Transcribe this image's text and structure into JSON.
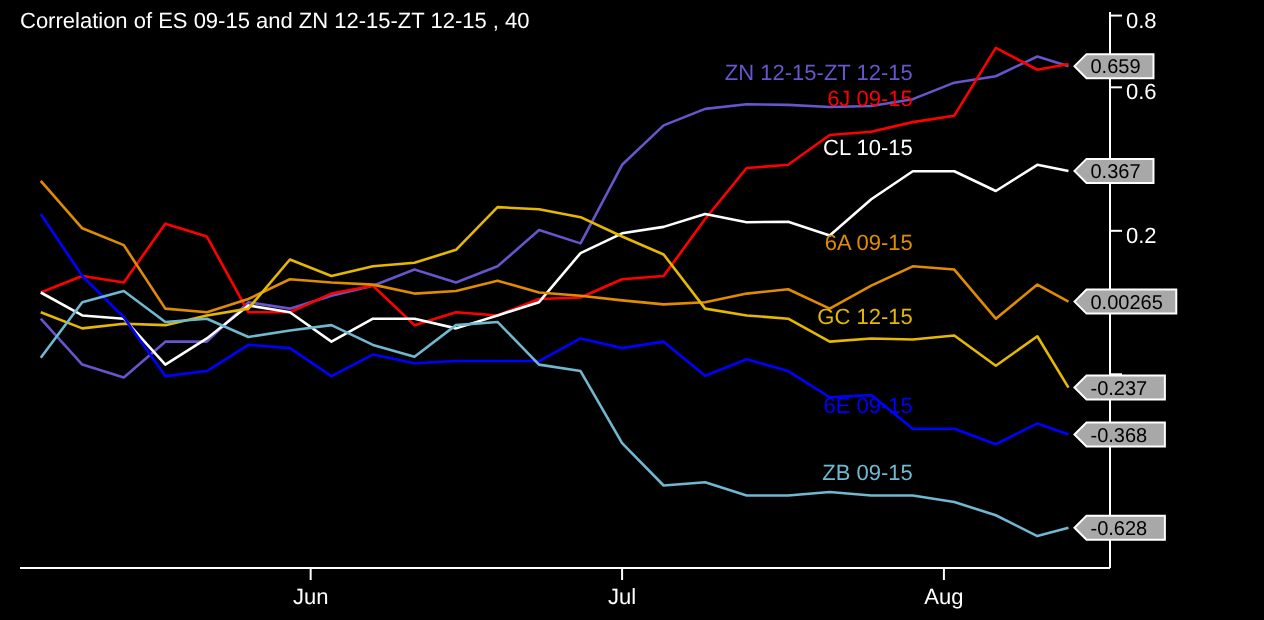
{
  "chart_data": {
    "type": "line",
    "title": "Correlation of ES 09-15 and ZN 12-15-ZT 12-15 , 40",
    "x": [
      "--05-06",
      "--05-10",
      "--05-14",
      "--05-18",
      "--05-22",
      "--05-26",
      "--05-30",
      "--06-03",
      "--06-07",
      "--06-11",
      "--06-15",
      "--06-19",
      "--06-23",
      "--06-27",
      "--07-01",
      "--07-05",
      "--07-09",
      "--07-13",
      "--07-17",
      "--07-21",
      "--07-25",
      "--07-29",
      "--08-02",
      "--08-06",
      "--08-10",
      "--08-13"
    ],
    "xlim": [
      "--05-04",
      "--08-17"
    ],
    "xticks": [
      {
        "value": "--06-01",
        "label": "Jun"
      },
      {
        "value": "--07-01",
        "label": "Jul"
      },
      {
        "value": "--08-01",
        "label": "Aug"
      }
    ],
    "ylim": [
      -0.74,
      0.81
    ],
    "yticks": [
      0.8,
      0.6,
      {
        "value": 0.4,
        "label": null
      },
      0.2,
      {
        "value": 0,
        "label": null
      },
      {
        "value": -0.2,
        "label": null
      },
      {
        "value": -0.4,
        "label": null
      },
      {
        "value": -0.6,
        "label": null
      }
    ],
    "grid": false,
    "legend": false,
    "marker": "none",
    "line_style": "solid",
    "series": [
      {
        "name": "ZN 12-15-ZT 12-15",
        "color": "#6655cc",
        "values": [
          -0.045,
          -0.173,
          -0.209,
          -0.109,
          -0.109,
          0.001,
          -0.017,
          0.019,
          0.047,
          0.092,
          0.056,
          0.101,
          0.202,
          0.165,
          0.384,
          0.494,
          0.54,
          0.553,
          0.551,
          0.545,
          0.548,
          0.567,
          0.613,
          0.631,
          0.686,
          0.659
        ],
        "value_labels": [
          null,
          null,
          null,
          null,
          null,
          null,
          null,
          null,
          null,
          null,
          null,
          null,
          null,
          null,
          null,
          null,
          null,
          null,
          null,
          null,
          null,
          null,
          null,
          null,
          null,
          "0.659"
        ]
      },
      {
        "name": "6J 09-15",
        "color": "#ff0000",
        "values": [
          0.028,
          0.074,
          0.056,
          0.22,
          0.184,
          -0.027,
          -0.027,
          0.025,
          0.047,
          -0.063,
          -0.027,
          -0.036,
          0.01,
          0.014,
          0.065,
          0.074,
          0.233,
          0.375,
          0.384,
          0.467,
          0.476,
          0.503,
          0.521,
          0.71,
          0.649,
          0.665
        ]
      },
      {
        "name": "CL 10-15",
        "color": "#ffffff",
        "values": [
          0.028,
          -0.036,
          -0.045,
          -0.173,
          -0.1,
          -0.008,
          -0.027,
          -0.109,
          -0.045,
          -0.045,
          -0.072,
          -0.036,
          0.001,
          0.138,
          0.193,
          0.211,
          0.247,
          0.224,
          0.225,
          0.187,
          0.288,
          0.366,
          0.366,
          0.311,
          0.384,
          0.367
        ],
        "value_labels": [
          null,
          null,
          null,
          null,
          null,
          null,
          null,
          null,
          null,
          null,
          null,
          null,
          null,
          null,
          null,
          null,
          null,
          null,
          null,
          null,
          null,
          null,
          null,
          null,
          null,
          "0.367"
        ]
      },
      {
        "name": "6A 09-15",
        "color": "#e08c00",
        "values": [
          0.339,
          0.207,
          0.16,
          -0.017,
          -0.027,
          0.01,
          0.065,
          0.056,
          0.05,
          0.025,
          0.032,
          0.061,
          0.028,
          0.019,
          0.006,
          -0.005,
          0.001,
          0.025,
          0.037,
          -0.017,
          0.047,
          0.101,
          0.092,
          -0.045,
          0.05,
          0.00265
        ],
        "value_labels": [
          null,
          null,
          null,
          null,
          null,
          null,
          null,
          null,
          null,
          null,
          null,
          null,
          null,
          null,
          null,
          null,
          null,
          null,
          null,
          null,
          null,
          null,
          null,
          null,
          null,
          "0.00265"
        ]
      },
      {
        "name": "GC 12-15",
        "color": "#e6b800",
        "values": [
          -0.027,
          -0.072,
          -0.059,
          -0.063,
          -0.036,
          -0.017,
          0.12,
          0.074,
          0.101,
          0.111,
          0.147,
          0.266,
          0.26,
          0.238,
          0.184,
          0.134,
          -0.017,
          -0.036,
          -0.045,
          -0.109,
          -0.1,
          -0.103,
          -0.092,
          -0.176,
          -0.094,
          -0.237
        ],
        "value_labels": [
          null,
          null,
          null,
          null,
          null,
          null,
          null,
          null,
          null,
          null,
          null,
          null,
          null,
          null,
          null,
          null,
          null,
          null,
          null,
          null,
          null,
          null,
          null,
          null,
          null,
          "-0.237"
        ]
      },
      {
        "name": "6E 09-15",
        "color": "#0000ff",
        "values": [
          0.247,
          0.074,
          -0.041,
          -0.205,
          -0.191,
          -0.118,
          -0.127,
          -0.205,
          -0.145,
          -0.169,
          -0.163,
          -0.163,
          -0.163,
          -0.1,
          -0.127,
          -0.109,
          -0.204,
          -0.158,
          -0.191,
          -0.264,
          -0.258,
          -0.352,
          -0.352,
          -0.395,
          -0.337,
          -0.368
        ],
        "value_labels": [
          null,
          null,
          null,
          null,
          null,
          null,
          null,
          null,
          null,
          null,
          null,
          null,
          null,
          null,
          null,
          null,
          null,
          null,
          null,
          null,
          null,
          null,
          null,
          null,
          null,
          "-0.368"
        ]
      },
      {
        "name": "ZB 09-15",
        "color": "#70b8d0",
        "values": [
          -0.154,
          0.001,
          0.032,
          -0.054,
          -0.045,
          -0.096,
          -0.078,
          -0.063,
          -0.118,
          -0.151,
          -0.063,
          -0.054,
          -0.173,
          -0.191,
          -0.392,
          -0.51,
          -0.501,
          -0.538,
          -0.538,
          -0.528,
          -0.538,
          -0.538,
          -0.556,
          -0.593,
          -0.651,
          -0.628
        ],
        "value_labels": [
          null,
          null,
          null,
          null,
          null,
          null,
          null,
          null,
          null,
          null,
          null,
          null,
          null,
          null,
          null,
          null,
          null,
          null,
          null,
          null,
          null,
          null,
          null,
          null,
          null,
          "-0.628"
        ]
      }
    ]
  }
}
